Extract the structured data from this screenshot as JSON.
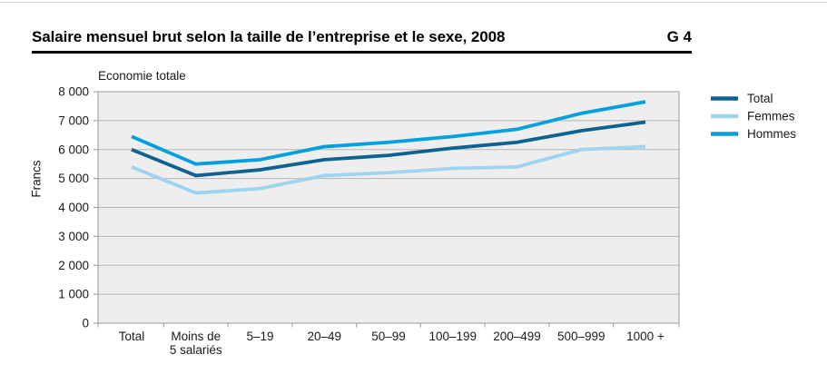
{
  "header": {
    "title": "Salaire mensuel brut selon la taille de l’entreprise et le sexe, 2008",
    "figure_ref": "G 4"
  },
  "chart_data": {
    "type": "line",
    "subtitle": "Economie totale",
    "ylabel": "Francs",
    "ylim": [
      0,
      8000
    ],
    "ytick_step": 1000,
    "ytick_labels": [
      "0",
      "1 000",
      "2 000",
      "3 000",
      "4 000",
      "5 000",
      "6 000",
      "7 000",
      "8 000"
    ],
    "categories": [
      "Total",
      "Moins de 5 salariés",
      "5–19",
      "20–49",
      "50–99",
      "100–199",
      "200–499",
      "500–999",
      "1000 +"
    ],
    "category_label_lines": [
      [
        "Total"
      ],
      [
        "Moins de",
        "5 salariés"
      ],
      [
        "5–19"
      ],
      [
        "20–49"
      ],
      [
        "50–99"
      ],
      [
        "100–199"
      ],
      [
        "200–499"
      ],
      [
        "500–999"
      ],
      [
        "1000 +"
      ]
    ],
    "series": [
      {
        "name": "Total",
        "color": "#0e6292",
        "values": [
          6000,
          5100,
          5300,
          5650,
          5800,
          6050,
          6250,
          6650,
          6950
        ]
      },
      {
        "name": "Femmes",
        "color": "#9fd4f0",
        "values": [
          5400,
          4500,
          4650,
          5100,
          5200,
          5350,
          5400,
          6000,
          6100
        ]
      },
      {
        "name": "Hommes",
        "color": "#009fe0",
        "values": [
          6450,
          5500,
          5650,
          6100,
          6250,
          6450,
          6700,
          7250,
          7650
        ]
      }
    ],
    "legend_position": "right",
    "grid": true,
    "plot_bg": "#eeeeee",
    "gridline_color": "#b5b5b5",
    "axis_border_color": "#9a9a9a"
  }
}
